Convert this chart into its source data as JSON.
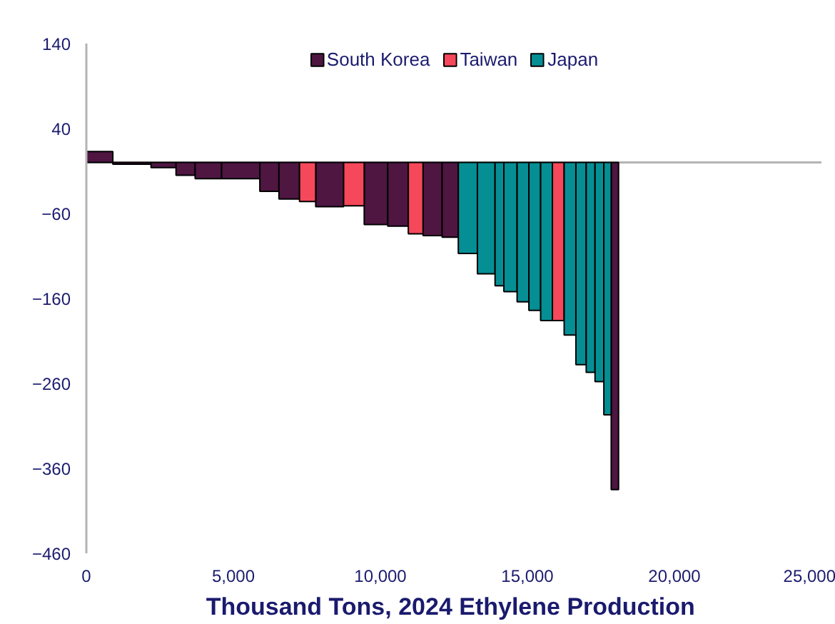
{
  "chart_data": {
    "type": "histogram",
    "xlabel": "Thousand Tons,  2024 Ethylene Production",
    "bins": [
      0,
      900,
      2200,
      3050,
      3700,
      4600,
      5900,
      6550,
      7250,
      7800,
      8750,
      9450,
      10250,
      10950,
      11450,
      12100,
      12650,
      13300,
      13900,
      14200,
      14650,
      15050,
      15450,
      15850,
      16250,
      16650,
      17000,
      17300,
      17600,
      17850,
      18100
    ],
    "series": [
      {
        "name": "South Korea",
        "color": "#4f1642",
        "values": [
          13,
          -2,
          -6,
          -15,
          -19,
          -19,
          -34,
          -43,
          null,
          -52,
          null,
          -73,
          -75,
          null,
          -86,
          -88,
          null,
          null,
          null,
          null,
          null,
          null,
          null,
          null,
          null,
          null,
          null,
          null,
          null,
          -385
        ]
      },
      {
        "name": "Taiwan",
        "color": "#f5485a",
        "values": [
          null,
          null,
          null,
          null,
          null,
          null,
          null,
          null,
          -46,
          null,
          -51,
          null,
          null,
          -84,
          null,
          null,
          null,
          null,
          null,
          null,
          null,
          null,
          null,
          -186,
          null,
          null,
          null,
          null,
          null,
          null
        ]
      },
      {
        "name": "Japan",
        "color": "#058f94",
        "values": [
          null,
          null,
          null,
          null,
          null,
          null,
          null,
          null,
          null,
          null,
          null,
          null,
          null,
          null,
          null,
          null,
          -107,
          -131,
          -145,
          -152,
          -164,
          -174,
          -186,
          null,
          -203,
          -238,
          -247,
          -258,
          -297,
          null
        ]
      }
    ],
    "xlim": [
      0,
      25000
    ],
    "xticks": [
      0,
      {
        "value": 5000,
        "label": "5,000"
      },
      {
        "value": 10000,
        "label": "10,000"
      },
      {
        "value": 15000,
        "label": "15,000"
      },
      {
        "value": 20000,
        "label": "20,000"
      },
      {
        "value": 25000,
        "label": "25,000"
      }
    ],
    "ylim": [
      -460,
      140
    ],
    "yticks": [
      140,
      40,
      -60,
      -160,
      -260,
      -360,
      -460
    ],
    "ref_lines": [
      {
        "axis": "y",
        "value": 0,
        "color": "#b4b4b4"
      }
    ],
    "legend": "top",
    "grid": false
  }
}
